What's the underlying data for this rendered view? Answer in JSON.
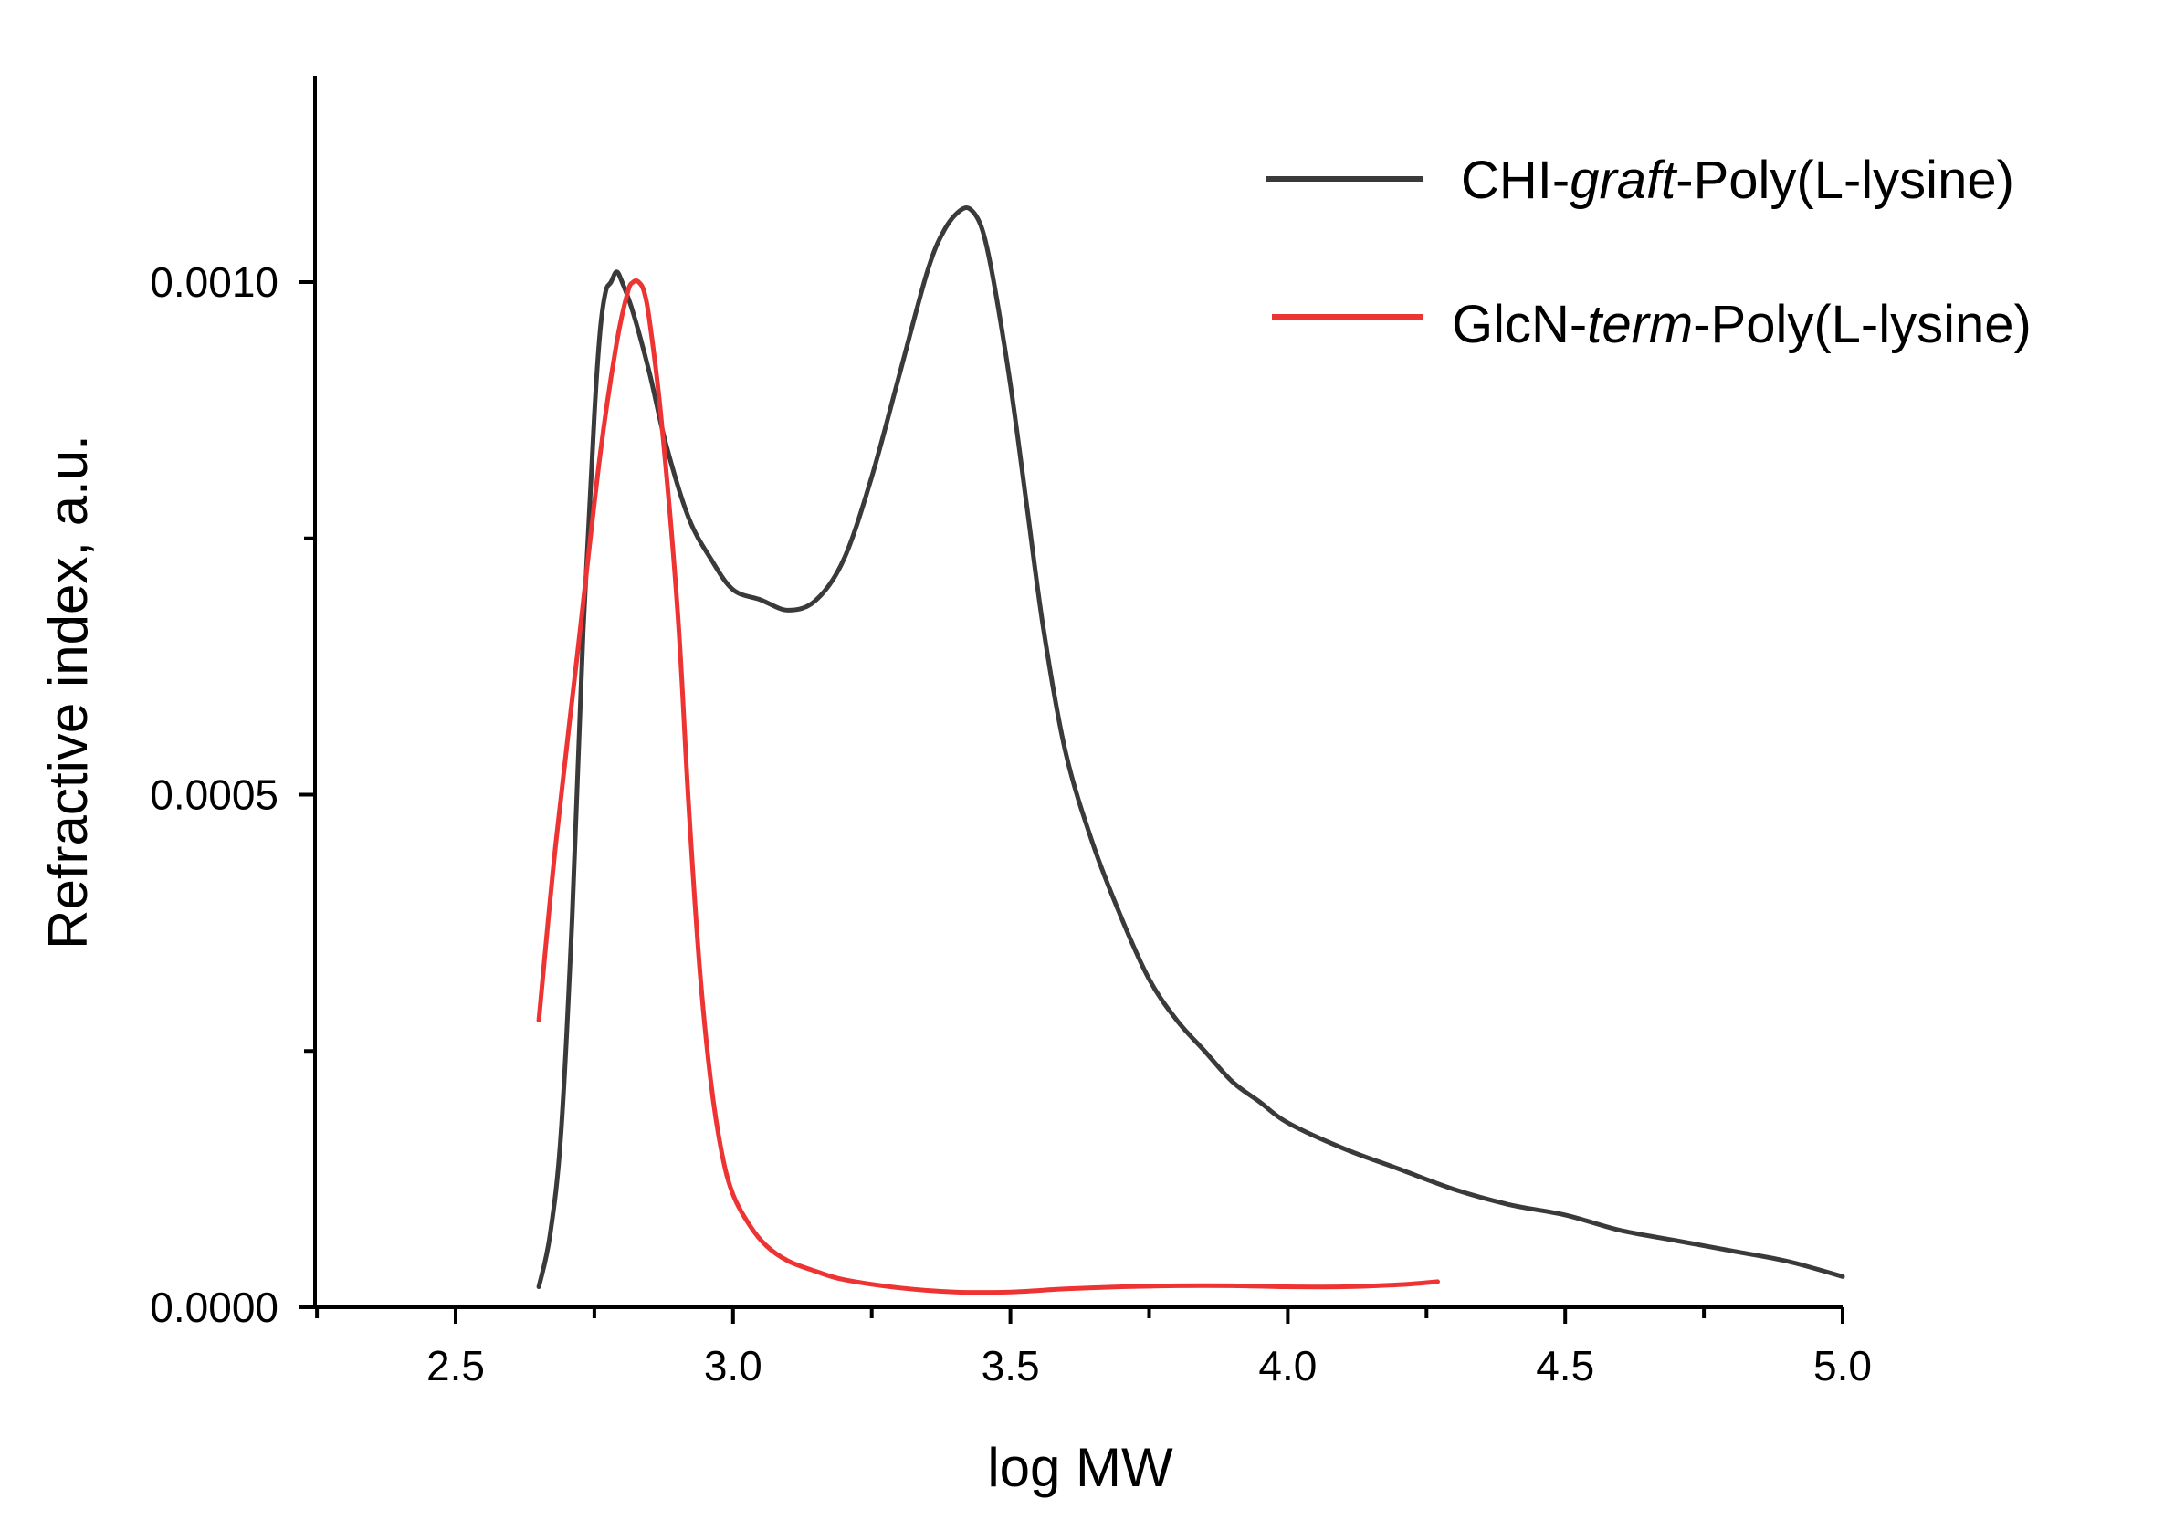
{
  "chart_data": {
    "type": "line",
    "title": "",
    "xlabel": "log MW",
    "ylabel": "Refractive index, a.u.",
    "xlim": [
      2.25,
      5.0
    ],
    "ylim": [
      0.0,
      0.0012
    ],
    "x_ticks": [
      2.5,
      3.0,
      3.5,
      4.0,
      4.5,
      5.0
    ],
    "x_tick_labels": [
      "2.5",
      "3.0",
      "3.5",
      "4.0",
      "4.5",
      "5.0"
    ],
    "x_minor_ticks": [
      2.25,
      2.75,
      3.25,
      3.75,
      4.25,
      4.75
    ],
    "y_ticks": [
      0.0,
      0.0005,
      0.001
    ],
    "y_tick_labels": [
      "0.0000",
      "0.0005",
      "0.0010"
    ],
    "y_minor_ticks": [
      0.00025,
      0.00075
    ],
    "legend_position": "top-right",
    "series": [
      {
        "name": "CHI-graft-Poly(L-lysine)",
        "name_parts": [
          "CHI-",
          "graft",
          "-Poly(L-lysine)"
        ],
        "color": "#3a3a3a",
        "x": [
          2.65,
          2.67,
          2.69,
          2.71,
          2.73,
          2.75,
          2.76,
          2.77,
          2.78,
          2.79,
          2.8,
          2.82,
          2.85,
          2.88,
          2.92,
          2.96,
          3.0,
          3.05,
          3.1,
          3.15,
          3.2,
          3.25,
          3.3,
          3.35,
          3.38,
          3.41,
          3.43,
          3.45,
          3.47,
          3.5,
          3.53,
          3.56,
          3.6,
          3.65,
          3.7,
          3.75,
          3.8,
          3.85,
          3.9,
          3.95,
          4.0,
          4.1,
          4.2,
          4.3,
          4.4,
          4.5,
          4.6,
          4.7,
          4.8,
          4.9,
          5.0
        ],
        "y": [
          2e-05,
          7e-05,
          0.00017,
          0.00038,
          0.00066,
          0.00087,
          0.00095,
          0.00099,
          0.001,
          0.00101,
          0.001,
          0.00097,
          0.00091,
          0.00084,
          0.00077,
          0.00073,
          0.0007,
          0.00069,
          0.00068,
          0.00069,
          0.00073,
          0.00081,
          0.00091,
          0.00101,
          0.00105,
          0.00107,
          0.00107,
          0.00105,
          0.001,
          0.0009,
          0.00078,
          0.00066,
          0.00054,
          0.00045,
          0.00038,
          0.00032,
          0.00028,
          0.00025,
          0.00022,
          0.0002,
          0.00018,
          0.000155,
          0.000135,
          0.000115,
          0.0001,
          9e-05,
          7.5e-05,
          6.5e-05,
          5.5e-05,
          4.5e-05,
          3e-05
        ]
      },
      {
        "name": "GlcN-term-Poly(L-lysine)",
        "name_parts": [
          "GlcN-",
          "term",
          "-Poly(L-lysine)"
        ],
        "color": "#ee3333",
        "x": [
          2.65,
          2.68,
          2.72,
          2.76,
          2.79,
          2.81,
          2.82,
          2.83,
          2.84,
          2.85,
          2.87,
          2.9,
          2.92,
          2.94,
          2.96,
          2.98,
          3.0,
          3.03,
          3.06,
          3.1,
          3.15,
          3.2,
          3.3,
          3.4,
          3.5,
          3.6,
          3.7,
          3.8,
          3.9,
          4.0,
          4.1,
          4.2,
          4.27
        ],
        "y": [
          0.00028,
          0.00045,
          0.00064,
          0.00083,
          0.00094,
          0.00099,
          0.001,
          0.001,
          0.00099,
          0.00096,
          0.00087,
          0.00068,
          0.00049,
          0.00033,
          0.00022,
          0.00015,
          0.00011,
          8e-05,
          6e-05,
          4.5e-05,
          3.5e-05,
          2.7e-05,
          1.9e-05,
          1.5e-05,
          1.5e-05,
          1.8e-05,
          2e-05,
          2.1e-05,
          2.1e-05,
          2e-05,
          2e-05,
          2.2e-05,
          2.5e-05
        ]
      }
    ]
  }
}
